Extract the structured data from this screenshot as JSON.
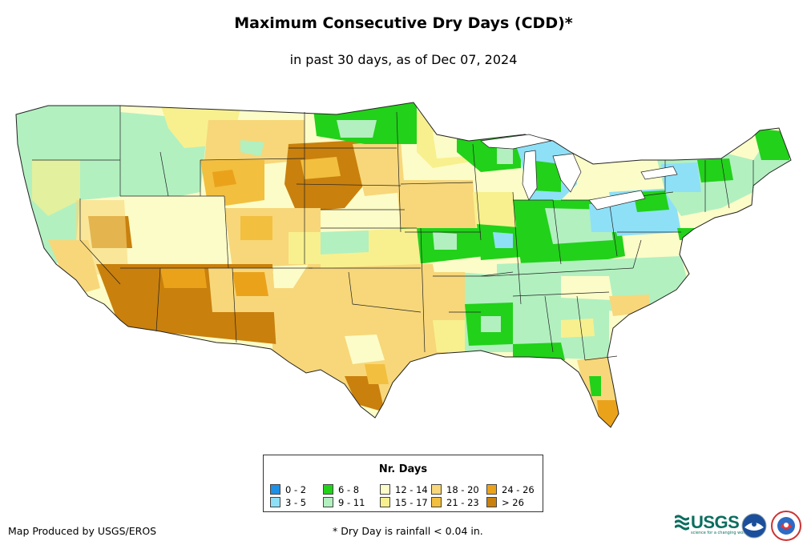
{
  "title": "Maximum Consecutive Dry Days (CDD)*",
  "subtitle": "in past 30 days, as of Dec 07, 2024",
  "legend": {
    "title": "Nr. Days",
    "items": [
      {
        "label": "0 - 2",
        "color": "#1e90e6"
      },
      {
        "label": "3 - 5",
        "color": "#8ee0f7"
      },
      {
        "label": "6 - 8",
        "color": "#22d11a"
      },
      {
        "label": "9 - 11",
        "color": "#b2f0c0"
      },
      {
        "label": "12 - 14",
        "color": "#fcfcc8"
      },
      {
        "label": "15 - 17",
        "color": "#f8f08e"
      },
      {
        "label": "18 - 20",
        "color": "#f7d77a"
      },
      {
        "label": "21 - 23",
        "color": "#f2bf3f"
      },
      {
        "label": "24 - 26",
        "color": "#eba21b"
      },
      {
        "label": "> 26",
        "color": "#c9800d"
      }
    ]
  },
  "credit": "Map Produced by USGS/EROS",
  "footnote": "* Dry Day is rainfall < 0.04 in.",
  "logos": {
    "usgs": "USGS",
    "usgs_tagline": "science for a changing world"
  }
}
